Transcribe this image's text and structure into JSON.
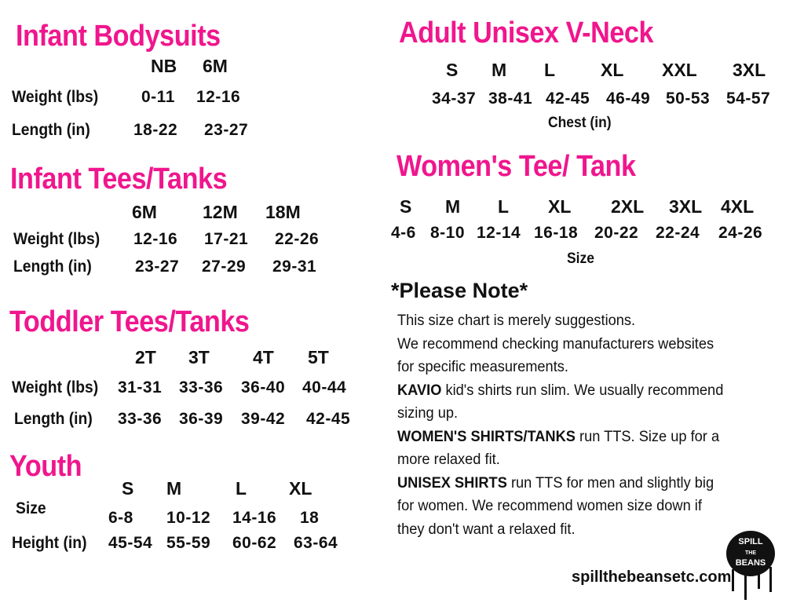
{
  "colors": {
    "heading": "#f0168d",
    "text": "#111111"
  },
  "infant_bodysuits": {
    "title": "Infant Bodysuits",
    "sizes": [
      "NB",
      "6M"
    ],
    "rows": [
      {
        "label": "Weight (lbs)",
        "values": [
          "0-11",
          "12-16"
        ]
      },
      {
        "label": "Length (in)",
        "values": [
          "18-22",
          "23-27"
        ]
      }
    ]
  },
  "infant_tees": {
    "title": "Infant Tees/Tanks",
    "sizes": [
      "6M",
      "12M",
      "18M"
    ],
    "rows": [
      {
        "label": "Weight (lbs)",
        "values": [
          "12-16",
          "17-21",
          "22-26"
        ]
      },
      {
        "label": "Length (in)",
        "values": [
          "23-27",
          "27-29",
          "29-31"
        ]
      }
    ]
  },
  "toddler_tees": {
    "title": "Toddler  Tees/Tanks",
    "sizes": [
      "2T",
      "3T",
      "4T",
      "5T"
    ],
    "rows": [
      {
        "label": "Weight (lbs)",
        "values": [
          "31-31",
          "33-36",
          "36-40",
          "40-44"
        ]
      },
      {
        "label": "Length (in)",
        "values": [
          "33-36",
          "36-39",
          "39-42",
          "42-45"
        ]
      }
    ]
  },
  "youth": {
    "title": "Youth",
    "sizes": [
      "S",
      "M",
      "L",
      "XL"
    ],
    "rows": [
      {
        "label": "Size",
        "values": [
          "6-8",
          "10-12",
          "14-16",
          "18"
        ]
      },
      {
        "label": "Height (in)",
        "values": [
          "45-54",
          "55-59",
          "60-62",
          "63-64"
        ]
      }
    ]
  },
  "adult_unisex": {
    "title": "Adult Unisex V-Neck",
    "sizes": [
      "S",
      "M",
      "L",
      "XL",
      "XXL",
      "3XL"
    ],
    "rows": [
      {
        "label": "",
        "values": [
          "34-37",
          "38-41",
          "42-45",
          "46-49",
          "50-53",
          "54-57"
        ]
      }
    ],
    "caption": "Chest (in)"
  },
  "womens_tee": {
    "title": "Women's Tee/ Tank",
    "sizes": [
      "S",
      "M",
      "L",
      "XL",
      "2XL",
      "3XL",
      "4XL"
    ],
    "rows": [
      {
        "label": "",
        "values": [
          "4-6",
          "8-10",
          "12-14",
          "16-18",
          "20-22",
          "22-24",
          "24-26"
        ]
      }
    ],
    "caption": "Size"
  },
  "note": {
    "title": "*Please Note*",
    "lines": [
      {
        "bold": "",
        "text": "This size chart is merely suggestions."
      },
      {
        "bold": "",
        "text": "We recommend checking manufacturers websites"
      },
      {
        "bold": "",
        "text": "for specific measurements."
      },
      {
        "bold": "KAVIO",
        "text": " kid's shirts run slim. We usually recommend"
      },
      {
        "bold": "",
        "text": "sizing up."
      },
      {
        "bold": "WOMEN'S SHIRTS/TANKS",
        "text": " run TTS. Size up for a"
      },
      {
        "bold": "",
        "text": "more relaxed fit."
      },
      {
        "bold": "UNISEX SHIRTS",
        "text": " run TTS for men and slightly big"
      },
      {
        "bold": "",
        "text": "for women. We recommend women size down if"
      },
      {
        "bold": "",
        "text": "they don't want a relaxed fit."
      }
    ]
  },
  "footer": {
    "website": "spillthebeansetc.com",
    "logo_text": "Spill the Beans etc"
  }
}
